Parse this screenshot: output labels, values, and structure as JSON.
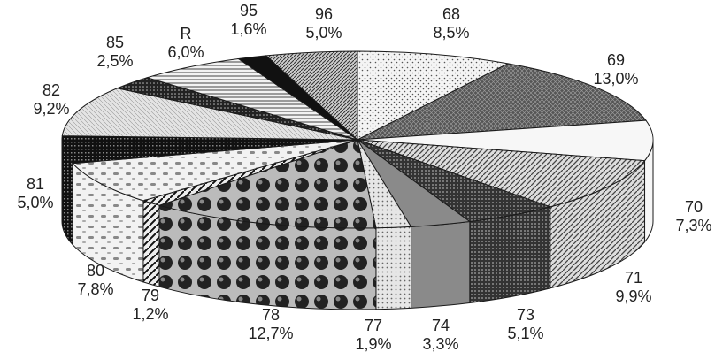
{
  "chart_data": {
    "type": "pie",
    "style": "3d-exploded-none",
    "title": "",
    "slices": [
      {
        "name": "68",
        "pct_label": "8,5%",
        "value": 8.5,
        "pattern": "dots-light"
      },
      {
        "name": "69",
        "pct_label": "13,0%",
        "value": 13.0,
        "pattern": "dark-crosshatch"
      },
      {
        "name": "70",
        "pct_label": "7,3%",
        "value": 7.3,
        "pattern": "white"
      },
      {
        "name": "71",
        "pct_label": "9,9%",
        "value": 9.9,
        "pattern": "diag-lines"
      },
      {
        "name": "73",
        "pct_label": "5,1%",
        "value": 5.1,
        "pattern": "dark-grid"
      },
      {
        "name": "74",
        "pct_label": "3,3%",
        "value": 3.3,
        "pattern": "gray-solid"
      },
      {
        "name": "77",
        "pct_label": "1,9%",
        "value": 1.9,
        "pattern": "light-dots"
      },
      {
        "name": "78",
        "pct_label": "12,7%",
        "value": 12.7,
        "pattern": "spheres"
      },
      {
        "name": "79",
        "pct_label": "1,2%",
        "value": 1.2,
        "pattern": "zigzag"
      },
      {
        "name": "80",
        "pct_label": "7,8%",
        "value": 7.8,
        "pattern": "dash-light"
      },
      {
        "name": "81",
        "pct_label": "5,0%",
        "value": 5.0,
        "pattern": "black-checker"
      },
      {
        "name": "82",
        "pct_label": "9,2%",
        "value": 9.2,
        "pattern": "light-hatch"
      },
      {
        "name": "85",
        "pct_label": "2,5%",
        "value": 2.5,
        "pattern": "black-dots"
      },
      {
        "name": "R",
        "pct_label": "6,0%",
        "value": 6.0,
        "pattern": "h-lines"
      },
      {
        "name": "95",
        "pct_label": "1,6%",
        "value": 1.6,
        "pattern": "black-solid"
      },
      {
        "name": "96",
        "pct_label": "5,0%",
        "value": 5.0,
        "pattern": "diag-dense"
      }
    ]
  }
}
